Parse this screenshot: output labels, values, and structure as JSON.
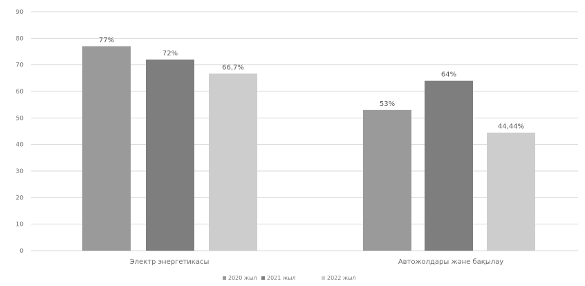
{
  "chart_data": {
    "type": "bar",
    "categories": [
      "Электр энергетикасы",
      "Автожолдары және бақылау"
    ],
    "series": [
      {
        "name": "2020 жыл",
        "values": [
          77,
          53
        ],
        "labels": [
          "77%",
          "53%"
        ],
        "color": "#9a9a9a"
      },
      {
        "name": "2021 жыл",
        "values": [
          72,
          64
        ],
        "labels": [
          "72%",
          "64%"
        ],
        "color": "#7e7e7e"
      },
      {
        "name": "2022 жыл",
        "values": [
          66.7,
          44.44
        ],
        "labels": [
          "66,7%",
          "44,44%"
        ],
        "color": "#cdcdcd"
      }
    ],
    "bar_order": [
      {
        "category": 0,
        "series": 0
      },
      {
        "category": 0,
        "series": 1
      },
      {
        "category": 0,
        "series": 2
      },
      {
        "category": 1,
        "series": 0
      },
      {
        "category": 1,
        "series": 1
      },
      {
        "category": 1,
        "series": 2
      }
    ],
    "yticks": [
      0,
      10,
      20,
      30,
      40,
      50,
      60,
      70,
      80,
      90
    ],
    "ylim": [
      0,
      90
    ],
    "grid": true,
    "legend_position": "bottom"
  }
}
